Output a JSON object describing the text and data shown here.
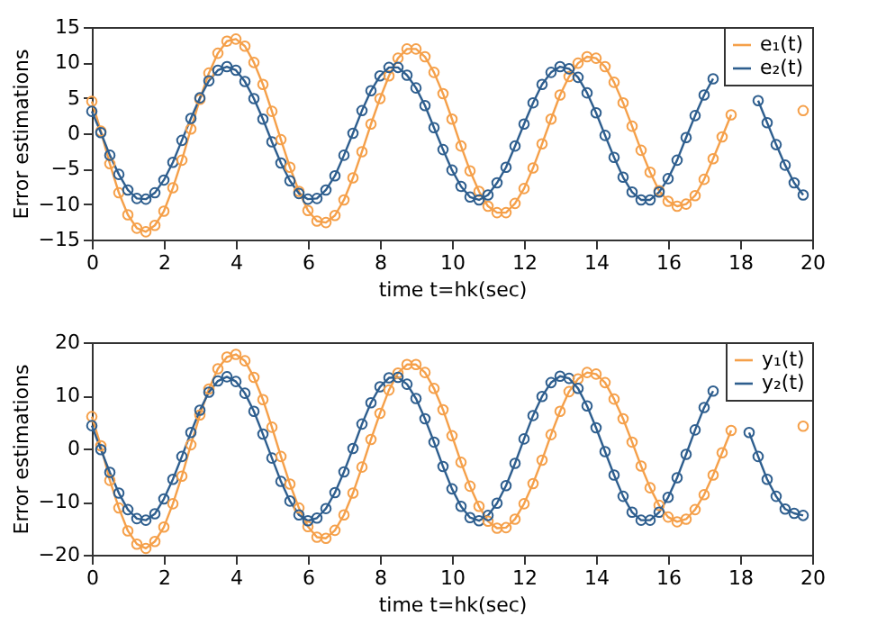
{
  "chart_data": [
    {
      "type": "line",
      "xlabel": "time t=hk(sec)",
      "ylabel": "Error estimations",
      "marker": "circle",
      "legend": "top right",
      "grid": false,
      "xlim": [
        0,
        20
      ],
      "xticks": [
        0,
        2,
        4,
        6,
        8,
        10,
        12,
        14,
        16,
        18,
        20
      ],
      "ylim": [
        -15,
        15
      ],
      "yticks": [
        -15,
        -10,
        -5,
        0,
        5,
        10,
        15
      ],
      "x": [
        0,
        0.25,
        0.5,
        0.75,
        1,
        1.25,
        1.5,
        1.75,
        2,
        2.25,
        2.5,
        2.75,
        3,
        3.25,
        3.5,
        3.75,
        4,
        4.25,
        4.5,
        4.75,
        5,
        5.25,
        5.5,
        5.75,
        6,
        6.25,
        6.5,
        6.75,
        7,
        7.25,
        7.5,
        7.75,
        8,
        8.25,
        8.5,
        8.75,
        9,
        9.25,
        9.5,
        9.75,
        10,
        10.25,
        10.5,
        10.75,
        11,
        11.25,
        11.5,
        11.75,
        12,
        12.25,
        12.5,
        12.75,
        13,
        13.25,
        13.5,
        13.75,
        14,
        14.25,
        14.5,
        14.75,
        15,
        15.25,
        15.5,
        15.75,
        16,
        16.25,
        16.5,
        16.75,
        17,
        17.25,
        17.5,
        17.75,
        18,
        18.25,
        18.5,
        18.75,
        19,
        19.25,
        19.5,
        19.75
      ],
      "series": [
        {
          "name": "e₁(t)",
          "color": "#f5a04a",
          "values": [
            4.5,
            0.3,
            -4.3,
            -8.4,
            -11.5,
            -13.4,
            -13.9,
            -13,
            -11,
            -7.7,
            -3.8,
            0.6,
            4.8,
            8.5,
            11.3,
            13,
            13.3,
            12.3,
            10,
            6.9,
            3.1,
            -0.9,
            -4.8,
            -8.2,
            -10.9,
            -12.4,
            -12.6,
            -11.6,
            -9.4,
            -6.3,
            -2.6,
            1.3,
            4.9,
            8.1,
            10.6,
            11.9,
            11.9,
            10.8,
            8.6,
            5.6,
            2,
            -1.8,
            -5.3,
            -8.2,
            -10.3,
            -11.2,
            -11.2,
            -9.9,
            -7.8,
            -4.9,
            -1.5,
            2,
            5.4,
            8,
            9.9,
            10.8,
            10.6,
            9.4,
            7.2,
            4.3,
            1,
            -2.4,
            -5.5,
            -8.1,
            -9.6,
            -10.3,
            -10,
            -8.8,
            -6.5,
            -3.6,
            -0.5,
            2.6,
            null,
            null,
            null,
            null,
            null,
            null,
            null,
            3.2
          ]
        },
        {
          "name": "e₂(t)",
          "color": "#2e5e8e",
          "values": [
            3.1,
            0.1,
            -3.1,
            -5.8,
            -8,
            -9.2,
            -9.3,
            -8.4,
            -6.6,
            -4.1,
            -1,
            2.1,
            5,
            7.4,
            8.9,
            9.4,
            8.9,
            7.3,
            4.9,
            2,
            -1.2,
            -4.2,
            -6.7,
            -8.5,
            -9.3,
            -9.2,
            -8,
            -6,
            -3.1,
            0,
            3.2,
            6,
            8.1,
            9.3,
            9.3,
            8.2,
            6.4,
            3.9,
            0.8,
            -2.3,
            -5.2,
            -7.5,
            -9,
            -9.4,
            -8.7,
            -7,
            -4.8,
            -1.8,
            1.3,
            4.3,
            6.9,
            8.6,
            9.4,
            9.1,
            7.9,
            5.7,
            2.9,
            -0.3,
            -3.4,
            -6.2,
            -8.3,
            -9.4,
            -9.4,
            -8.3,
            -6.4,
            -3.8,
            -0.6,
            2.5,
            5.4,
            7.7,
            null,
            null,
            null,
            null,
            4.6,
            1.5,
            -1.6,
            -4.5,
            -7,
            -8.7
          ]
        }
      ]
    },
    {
      "type": "line",
      "xlabel": "time t=hk(sec)",
      "ylabel": "Error estimations",
      "marker": "circle",
      "legend": "top right",
      "grid": false,
      "xlim": [
        0,
        20
      ],
      "xticks": [
        0,
        2,
        4,
        6,
        8,
        10,
        12,
        14,
        16,
        18,
        20
      ],
      "ylim": [
        -20,
        20
      ],
      "yticks": [
        -20,
        -10,
        0,
        10,
        20
      ],
      "x": [
        0,
        0.25,
        0.5,
        0.75,
        1,
        1.25,
        1.5,
        1.75,
        2,
        2.25,
        2.5,
        2.75,
        3,
        3.25,
        3.5,
        3.75,
        4,
        4.25,
        4.5,
        4.75,
        5,
        5.25,
        5.5,
        5.75,
        6,
        6.25,
        6.5,
        6.75,
        7,
        7.25,
        7.5,
        7.75,
        8,
        8.25,
        8.5,
        8.75,
        9,
        9.25,
        9.5,
        9.75,
        10,
        10.25,
        10.5,
        10.75,
        11,
        11.25,
        11.5,
        11.75,
        12,
        12.25,
        12.5,
        12.75,
        13,
        13.25,
        13.5,
        13.75,
        14,
        14.25,
        14.5,
        14.75,
        15,
        15.25,
        15.5,
        15.75,
        16,
        16.25,
        16.5,
        16.75,
        17,
        17.25,
        17.5,
        17.75,
        18,
        18.25,
        18.5,
        18.75,
        19,
        19.25,
        19.5,
        19.75
      ],
      "series": [
        {
          "name": "y₁(t)",
          "color": "#f5a04a",
          "values": [
            6,
            0.5,
            -6,
            -11.2,
            -15.5,
            -18,
            -18.8,
            -17.5,
            -14.8,
            -10.4,
            -5.2,
            0.7,
            6.3,
            11.2,
            15,
            17.2,
            17.7,
            16.5,
            13.4,
            9.2,
            4,
            -1.5,
            -6.7,
            -11.2,
            -14.7,
            -16.7,
            -16.9,
            -15.4,
            -12.5,
            -8.4,
            -3.5,
            1.7,
            6.6,
            11,
            14.2,
            15.8,
            15.8,
            14.3,
            11.3,
            7.3,
            2.4,
            -2.6,
            -7.1,
            -10.9,
            -13.7,
            -15,
            -14.9,
            -13.3,
            -10.4,
            -6.6,
            -2.2,
            2.6,
            7,
            10.7,
            13.1,
            14.3,
            14,
            12.4,
            9.3,
            5.6,
            1.2,
            -3.3,
            -7.4,
            -10.7,
            -12.9,
            -13.8,
            -13.3,
            -11.5,
            -8.7,
            -5,
            -0.8,
            3.4,
            null,
            null,
            null,
            null,
            null,
            null,
            null,
            4.2
          ]
        },
        {
          "name": "y₂(t)",
          "color": "#2e5e8e",
          "values": [
            4.3,
            -0.2,
            -4.5,
            -8.4,
            -11.5,
            -13.2,
            -13.5,
            -12.3,
            -9.5,
            -5.8,
            -1.5,
            3,
            7.2,
            10.6,
            12.7,
            13.5,
            12.6,
            10.4,
            7,
            2.7,
            -1.8,
            -6.2,
            -9.9,
            -12.5,
            -13.6,
            -13.1,
            -11.3,
            -8.3,
            -4.4,
            0,
            4.6,
            8.6,
            11.6,
            13.3,
            13.4,
            12.1,
            9.4,
            5.6,
            1.2,
            -3.4,
            -7.6,
            -10.9,
            -13,
            -13.6,
            -12.6,
            -10.3,
            -7,
            -2.8,
            1.8,
            6.2,
            9.8,
            12.4,
            13.6,
            13.2,
            11.3,
            8,
            3.9,
            -0.6,
            -5,
            -9,
            -12,
            -13.5,
            -13.5,
            -12,
            -9.2,
            -5.5,
            -1.1,
            3.5,
            7.7,
            10.8,
            null,
            null,
            null,
            3,
            -1.5,
            -5.8,
            -9,
            -11.4,
            -12.2,
            -12.6
          ]
        }
      ]
    }
  ]
}
